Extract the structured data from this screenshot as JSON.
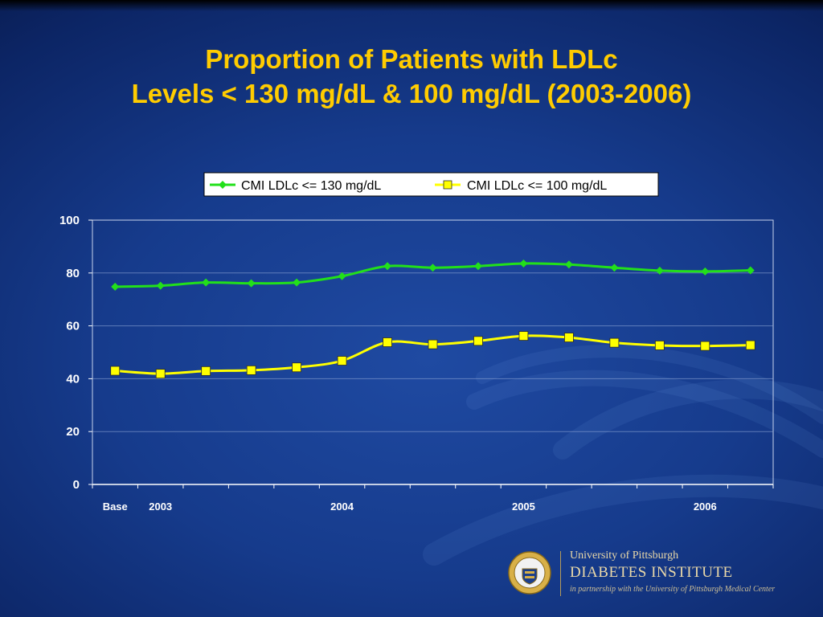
{
  "slide": {
    "title_line1": "Proportion of Patients with LDLc",
    "title_line2": "Levels < 130 mg/dL & 100 mg/dL (2003-2006)"
  },
  "chart_data": {
    "type": "line",
    "x": [
      "Base",
      "2003",
      "",
      "",
      "",
      "2004",
      "",
      "",
      "",
      "2005",
      "",
      "",
      "",
      "2006",
      ""
    ],
    "ylim": [
      0,
      100
    ],
    "yticks": [
      0,
      20,
      40,
      60,
      80,
      100
    ],
    "grid": true,
    "legend_position": "top",
    "series": [
      {
        "name": "CMI LDLc <= 130 mg/dL",
        "color": "#22e01a",
        "marker": "diamond",
        "values": [
          74.8,
          75.2,
          76.4,
          76.1,
          76.4,
          78.8,
          82.6,
          82.0,
          82.6,
          83.6,
          83.2,
          82.0,
          80.9,
          80.6,
          81.0
        ]
      },
      {
        "name": "CMI LDLc <= 100 mg/dL",
        "color": "#ffff00",
        "marker": "square",
        "values": [
          43.0,
          41.9,
          42.9,
          43.2,
          44.3,
          46.8,
          53.8,
          53.0,
          54.3,
          56.2,
          55.6,
          53.6,
          52.6,
          52.4,
          52.7
        ]
      }
    ]
  },
  "logo": {
    "line1": "University of Pittsburgh",
    "line2": "DIABETES INSTITUTE",
    "line3": "in partnership with the University of Pittsburgh Medical Center",
    "seal_icon": "university-seal-icon"
  }
}
